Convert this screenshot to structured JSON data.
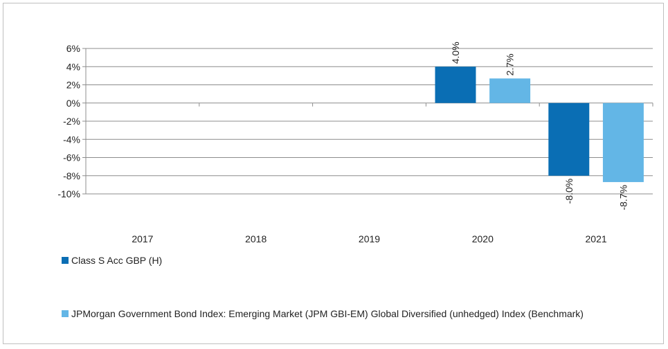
{
  "chart_data": {
    "type": "bar",
    "categories": [
      "2017",
      "2018",
      "2019",
      "2020",
      "2021"
    ],
    "series": [
      {
        "name": "Class S Acc GBP (H)",
        "color": "#0a6eb4",
        "values": [
          null,
          null,
          null,
          4.0,
          -8.0
        ],
        "labels": [
          "",
          "",
          "",
          "4.0%",
          "-8.0%"
        ]
      },
      {
        "name": "JPMorgan Government Bond Index: Emerging Market (JPM GBI-EM) Global Diversified (unhedged) Index (Benchmark)",
        "color": "#63b6e6",
        "values": [
          null,
          null,
          null,
          2.7,
          -8.7
        ],
        "labels": [
          "",
          "",
          "",
          "2.7%",
          "-8.7%"
        ]
      }
    ],
    "yticks": [
      "6%",
      "4%",
      "2%",
      "0%",
      "-2%",
      "-4%",
      "-6%",
      "-8%",
      "-10%"
    ],
    "ylim": [
      -10,
      6
    ],
    "grid": true,
    "legend_position": "bottom"
  }
}
